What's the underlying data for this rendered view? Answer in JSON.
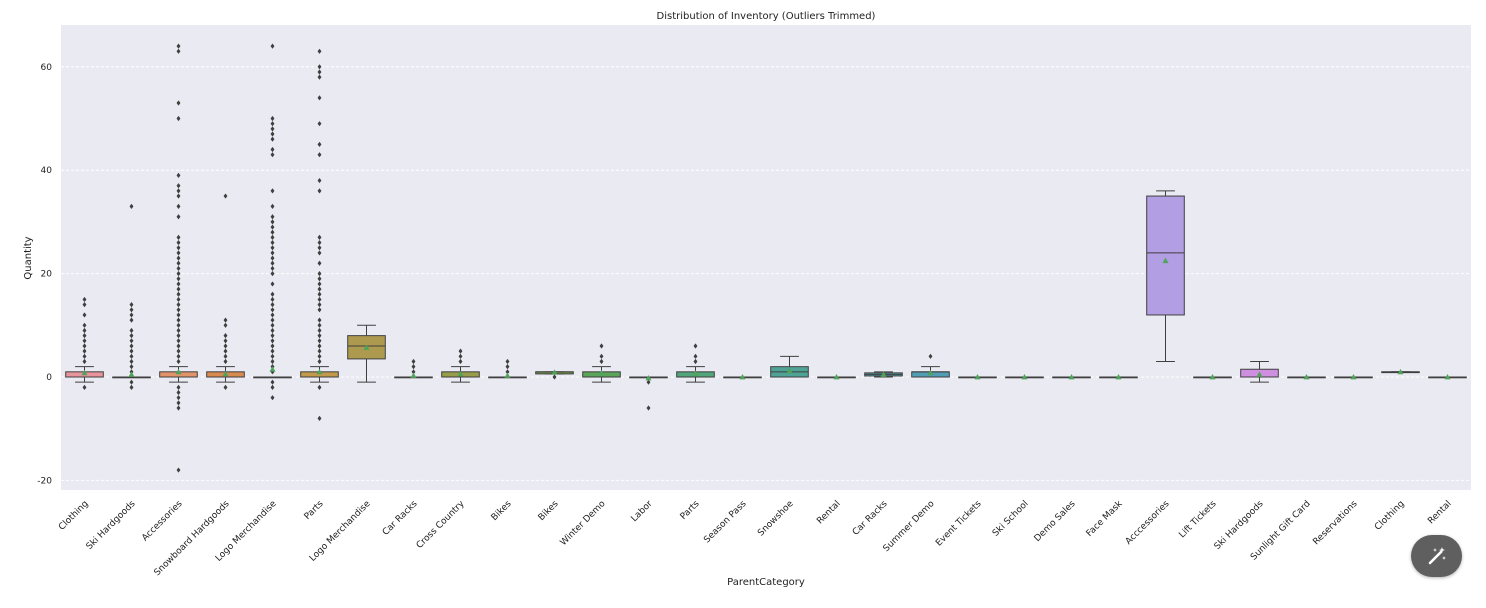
{
  "chart_data": {
    "type": "box",
    "title": "Distribution of Inventory (Outliers Trimmed)",
    "xlabel": "ParentCategory",
    "ylabel": "Quantity",
    "ylim": [
      -22,
      68
    ],
    "yticks": [
      -20,
      0,
      20,
      40,
      60
    ],
    "grid": true,
    "background": "#eaeaf2",
    "mean_marker_color": "#4fa35a",
    "categories": [
      {
        "name": "Clothing",
        "color": "#e8949c",
        "q1": 0,
        "median": 0,
        "q3": 1,
        "wlow": -1,
        "whigh": 2,
        "mean": 0.8,
        "outliers": [
          -2,
          3,
          4,
          5,
          6,
          7,
          8,
          9,
          10,
          12,
          14,
          15
        ]
      },
      {
        "name": "Ski Hardgoods",
        "color": "#e8949c",
        "q1": 0,
        "median": 0,
        "q3": 0,
        "wlow": 0,
        "whigh": 0,
        "mean": 0.5,
        "outliers": [
          -2,
          -1,
          1,
          2,
          3,
          4,
          5,
          6,
          7,
          8,
          9,
          11,
          12,
          13,
          14,
          33
        ]
      },
      {
        "name": "Accessories",
        "color": "#e19469",
        "q1": 0,
        "median": 0,
        "q3": 1,
        "wlow": -1,
        "whigh": 2,
        "mean": 1,
        "outliers": [
          -18,
          -6,
          -5,
          -4,
          -3,
          -2,
          3,
          4,
          5,
          6,
          7,
          8,
          9,
          10,
          11,
          12,
          13,
          14,
          15,
          16,
          17,
          18,
          19,
          20,
          21,
          22,
          23,
          24,
          25,
          26,
          27,
          31,
          33,
          35,
          36,
          37,
          39,
          50,
          53,
          63,
          64
        ]
      },
      {
        "name": "Snowboard Hardgoods",
        "color": "#d88a4f",
        "q1": 0,
        "median": 0,
        "q3": 1,
        "wlow": -1,
        "whigh": 2,
        "mean": 0.6,
        "outliers": [
          -2,
          3,
          4,
          5,
          6,
          7,
          8,
          10,
          11,
          35
        ]
      },
      {
        "name": "Logo Merchandise",
        "color": "#c99a4e",
        "q1": 0,
        "median": 0,
        "q3": 0,
        "wlow": 0,
        "whigh": 0,
        "mean": 1.5,
        "outliers": [
          -4,
          -2,
          -1,
          1,
          2,
          3,
          4,
          5,
          6,
          7,
          8,
          9,
          10,
          11,
          12,
          13,
          14,
          15,
          16,
          18,
          20,
          21,
          22,
          23,
          24,
          25,
          26,
          27,
          28,
          29,
          30,
          31,
          33,
          36,
          43,
          44,
          46,
          47,
          48,
          49,
          50,
          64
        ]
      },
      {
        "name": "Parts",
        "color": "#c29a4a",
        "q1": 0,
        "median": 0,
        "q3": 1,
        "wlow": -1,
        "whigh": 2,
        "mean": 1,
        "outliers": [
          -8,
          -2,
          3,
          4,
          5,
          6,
          7,
          8,
          9,
          10,
          11,
          13,
          14,
          15,
          16,
          17,
          18,
          19,
          20,
          22,
          24,
          25,
          26,
          27,
          36,
          38,
          43,
          45,
          49,
          54,
          58,
          59,
          60,
          63
        ]
      },
      {
        "name": "Logo Merchandise",
        "color": "#ad9a4f",
        "q1": 3.5,
        "median": 6,
        "q3": 8,
        "wlow": -1,
        "whigh": 10,
        "mean": 5.7,
        "outliers": []
      },
      {
        "name": "Car Racks",
        "color": "#9e9c45",
        "q1": 0,
        "median": 0,
        "q3": 0,
        "wlow": 0,
        "whigh": 0,
        "mean": 0.3,
        "outliers": [
          1,
          2,
          3
        ]
      },
      {
        "name": "Cross Country",
        "color": "#979d48",
        "q1": 0,
        "median": 0,
        "q3": 1,
        "wlow": -1,
        "whigh": 2,
        "mean": 0.6,
        "outliers": [
          3,
          4,
          5
        ]
      },
      {
        "name": "Bikes",
        "color": "#8aa04c",
        "q1": 0,
        "median": 0,
        "q3": 0,
        "wlow": 0,
        "whigh": 0,
        "mean": 0.3,
        "outliers": [
          1,
          2,
          3
        ]
      },
      {
        "name": "Bikes",
        "color": "#78a04a",
        "q1": 0.6,
        "median": 1,
        "q3": 1,
        "wlow": 0.6,
        "whigh": 1,
        "mean": 0.9,
        "outliers": [
          0
        ]
      },
      {
        "name": "Winter Demo",
        "color": "#5aa55a",
        "q1": 0,
        "median": 0,
        "q3": 1,
        "wlow": -1,
        "whigh": 2,
        "mean": 0.8,
        "outliers": [
          3,
          4,
          6
        ]
      },
      {
        "name": "Labor",
        "color": "#54a56b",
        "q1": 0,
        "median": 0,
        "q3": 0,
        "wlow": 0,
        "whigh": 0,
        "mean": -0.2,
        "outliers": [
          -1,
          -6
        ]
      },
      {
        "name": "Parts",
        "color": "#50a57a",
        "q1": 0,
        "median": 0,
        "q3": 1,
        "wlow": -1,
        "whigh": 2,
        "mean": 0.7,
        "outliers": [
          3,
          4,
          6
        ]
      },
      {
        "name": "Season Pass",
        "color": "#4fa38a",
        "q1": 0,
        "median": 0,
        "q3": 0,
        "wlow": 0,
        "whigh": 0,
        "mean": 0,
        "outliers": []
      },
      {
        "name": "Snowshoe",
        "color": "#4ea396",
        "q1": 0,
        "median": 1,
        "q3": 2,
        "wlow": 0,
        "whigh": 4,
        "mean": 1.2,
        "outliers": []
      },
      {
        "name": "Rental",
        "color": "#4ea3a3",
        "q1": 0,
        "median": 0,
        "q3": 0,
        "wlow": 0,
        "whigh": 0,
        "mean": 0,
        "outliers": []
      },
      {
        "name": "Car Racks",
        "color": "#4fa0ac",
        "q1": 0.2,
        "median": 0.5,
        "q3": 0.8,
        "wlow": 0,
        "whigh": 1,
        "mean": 0.5,
        "outliers": []
      },
      {
        "name": "Summer Demo",
        "color": "#519db6",
        "q1": 0,
        "median": 1,
        "q3": 1,
        "wlow": 0,
        "whigh": 2,
        "mean": 0.8,
        "outliers": [
          4
        ]
      },
      {
        "name": "Event Tickets",
        "color": "#5699c1",
        "q1": 0,
        "median": 0,
        "q3": 0,
        "wlow": 0,
        "whigh": 0,
        "mean": 0,
        "outliers": []
      },
      {
        "name": "Ski School",
        "color": "#5f93c9",
        "q1": 0,
        "median": 0,
        "q3": 0,
        "wlow": 0,
        "whigh": 0,
        "mean": 0,
        "outliers": []
      },
      {
        "name": "Demo Sales",
        "color": "#6d8dd1",
        "q1": 0,
        "median": 0,
        "q3": 0,
        "wlow": 0,
        "whigh": 0,
        "mean": 0,
        "outliers": []
      },
      {
        "name": "Face Mask",
        "color": "#8388d8",
        "q1": 0,
        "median": 0,
        "q3": 0,
        "wlow": 0,
        "whigh": 0,
        "mean": 0,
        "outliers": []
      },
      {
        "name": "Acccessories",
        "color": "#b29ee3",
        "q1": 12,
        "median": 24,
        "q3": 35,
        "wlow": 3,
        "whigh": 36,
        "mean": 22.5,
        "outliers": []
      },
      {
        "name": "Lift Tickets",
        "color": "#bb8fe0",
        "q1": 0,
        "median": 0,
        "q3": 0,
        "wlow": 0,
        "whigh": 0,
        "mean": 0,
        "outliers": []
      },
      {
        "name": "Ski Hardgoods",
        "color": "#cf8fe0",
        "q1": 0,
        "median": 0,
        "q3": 1.5,
        "wlow": -1,
        "whigh": 3,
        "mean": 0.5,
        "outliers": []
      },
      {
        "name": "Sunlight Gift Card",
        "color": "#d98fd6",
        "q1": 0,
        "median": 0,
        "q3": 0,
        "wlow": 0,
        "whigh": 0,
        "mean": 0,
        "outliers": []
      },
      {
        "name": "Reservations",
        "color": "#de90c8",
        "q1": 0,
        "median": 0,
        "q3": 0,
        "wlow": 0,
        "whigh": 0,
        "mean": 0,
        "outliers": []
      },
      {
        "name": "Clothing",
        "color": "#e191bb",
        "q1": 1,
        "median": 1,
        "q3": 1,
        "wlow": 1,
        "whigh": 1,
        "mean": 1,
        "outliers": []
      },
      {
        "name": "Rental",
        "color": "#e393ad",
        "q1": 0,
        "median": 0,
        "q3": 0,
        "wlow": 0,
        "whigh": 0,
        "mean": 0,
        "outliers": []
      }
    ]
  },
  "fab": {
    "icon": "magic-wand-icon",
    "color": "#5f5f5f"
  }
}
